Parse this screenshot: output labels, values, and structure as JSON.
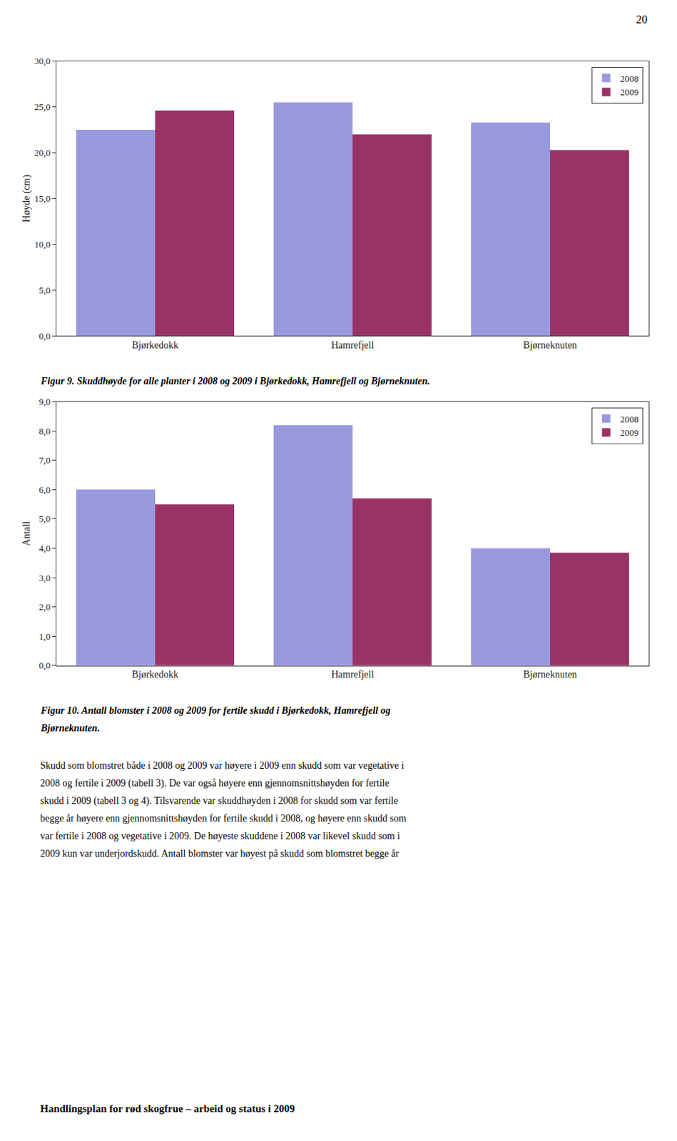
{
  "chart_data": [
    {
      "type": "bar",
      "categories": [
        "Bjørkedokk",
        "Hamrefjell",
        "Bjørneknuten"
      ],
      "series": [
        {
          "name": "2008",
          "color": "#9999DD",
          "values": [
            22.5,
            25.5,
            23.3
          ]
        },
        {
          "name": "2009",
          "color": "#993366",
          "values": [
            24.6,
            22.0,
            20.3
          ]
        }
      ],
      "y_label": "Høyde (cm)",
      "ylim": [
        0,
        30
      ],
      "yticks": [
        {
          "value": 0,
          "label": "0,0"
        },
        {
          "value": 5,
          "label": "5,0"
        },
        {
          "value": 10,
          "label": "10,0"
        },
        {
          "value": 15,
          "label": "15,0"
        },
        {
          "value": 20,
          "label": "20,0"
        },
        {
          "value": 25,
          "label": "25,0"
        },
        {
          "value": 30,
          "label": "30,0"
        }
      ],
      "grid": false,
      "legend": "upper right",
      "annotations": [
        "Figur 9. Skuddhøyde for alle planter i 2008 og 2009 i Bjørkedokk, Hamrefjell og Bjørneknuten."
      ]
    },
    {
      "type": "bar",
      "categories": [
        "Bjørkedokk",
        "Hamrefjell",
        "Bjørneknuten"
      ],
      "series": [
        {
          "name": "2008",
          "color": "#9999DD",
          "values": [
            6.0,
            8.2,
            4.0
          ]
        },
        {
          "name": "2009",
          "color": "#993366",
          "values": [
            5.5,
            5.7,
            3.85
          ]
        }
      ],
      "y_label": "Antall",
      "ylim": [
        0,
        9
      ],
      "yticks": [
        {
          "value": 0,
          "label": "0,0"
        },
        {
          "value": 1,
          "label": "1,0"
        },
        {
          "value": 2,
          "label": "2,0"
        },
        {
          "value": 3,
          "label": "3,0"
        },
        {
          "value": 4,
          "label": "4,0"
        },
        {
          "value": 5,
          "label": "5,0"
        },
        {
          "value": 6,
          "label": "6,0"
        },
        {
          "value": 7,
          "label": "7,0"
        },
        {
          "value": 8,
          "label": "8,0"
        },
        {
          "value": 9,
          "label": "9,0"
        }
      ],
      "grid": false,
      "legend": "upper right",
      "annotations": [
        "Figur 10. Antall blomster i 2008 og 2009 for fertile skudd i Bjørkedokk, Hamrefjell og",
        "Bjørneknuten."
      ]
    }
  ],
  "page_number": "20",
  "body_text": [
    "Skudd som blomstret både i 2008 og 2009 var høyere i 2009 enn skudd som var vegetative i",
    "2008 og fertile i 2009 (tabell 3). De var også høyere enn gjennomsnittshøyden for fertile",
    "skudd i 2009 (tabell 3 og 4). Tilsvarende var skuddhøyden i 2008 for skudd som var fertile",
    "begge år høyere enn gjennomsnittshøyden for fertile skudd i 2008, og høyere enn skudd som",
    "var fertile i 2008 og vegetative i 2009. De høyeste skuddene i 2008 var likevel skudd som i",
    "2009 kun var underjordskudd. Antall blomster var høyest på skudd som blomstret begge år"
  ],
  "footer": "Handlingsplan for rød skogfrue – arbeid og status i 2009"
}
